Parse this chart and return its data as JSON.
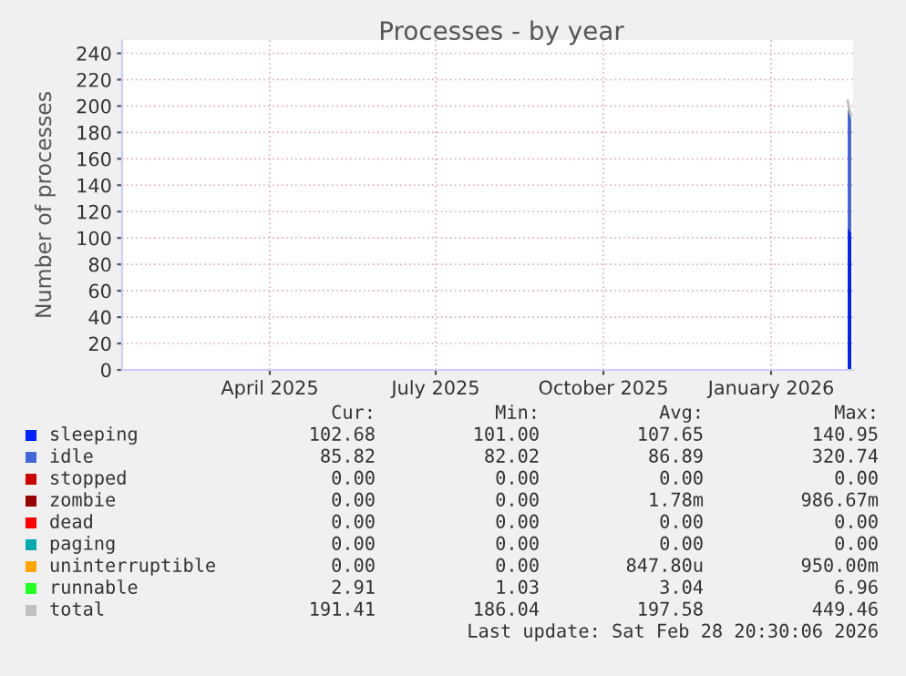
{
  "chart_data": {
    "type": "area",
    "title": "Processes - by year",
    "ylabel": "Number of processes",
    "stacked": true,
    "x": [
      "2026-02-26",
      "2026-02-27",
      "2026-02-28"
    ],
    "series": [
      {
        "name": "sleeping",
        "color": "#0022ff",
        "values": [
          108,
          106,
          104
        ]
      },
      {
        "name": "idle",
        "color": "#4466dd",
        "values": [
          90,
          88,
          86
        ]
      },
      {
        "name": "stopped",
        "color": "#cc0000",
        "values": [
          null,
          null,
          null
        ]
      },
      {
        "name": "zombie",
        "color": "#990000",
        "values": [
          null,
          null,
          null
        ]
      },
      {
        "name": "dead",
        "color": "#ff0000",
        "values": [
          null,
          null,
          null
        ]
      },
      {
        "name": "paging",
        "color": "#00aaaa",
        "values": [
          null,
          null,
          null
        ]
      },
      {
        "name": "uninterruptible",
        "color": "#ffa500",
        "values": [
          null,
          null,
          null
        ]
      },
      {
        "name": "runnable",
        "color": "#22ff22",
        "values": [
          6,
          3,
          3
        ]
      },
      {
        "name": "total",
        "color": "#c0c0c0",
        "type": "line",
        "values": [
          204,
          197,
          193
        ]
      }
    ],
    "xlim": [
      "2025-01-24",
      "2026-03-01"
    ],
    "xticks": [
      {
        "value": "2025-04-15",
        "label": "April 2025"
      },
      {
        "value": "2025-07-15",
        "label": "July 2025"
      },
      {
        "value": "2025-10-15",
        "label": "October 2025"
      },
      {
        "value": "2026-01-15",
        "label": "January 2026"
      }
    ],
    "ylim": [
      0,
      250
    ],
    "yticks": [
      0,
      20,
      40,
      60,
      80,
      100,
      120,
      140,
      160,
      180,
      200,
      220,
      240
    ],
    "grid": true,
    "legend": "bottom",
    "annotations": [
      "Cur:",
      "Min:",
      "Avg:",
      "Max:",
      "102.68",
      "101.00",
      "107.65",
      "140.95",
      "85.82",
      "82.02",
      "86.89",
      "320.74",
      "0.00",
      "0.00",
      "0.00",
      "0.00",
      "0.00",
      "0.00",
      "1.78m",
      "986.67m",
      "0.00",
      "0.00",
      "0.00",
      "0.00",
      "0.00",
      "0.00",
      "0.00",
      "0.00",
      "0.00",
      "0.00",
      "847.80u",
      "950.00m",
      "2.91",
      "1.03",
      "3.04",
      "6.96",
      "191.41",
      "186.04",
      "197.58",
      "449.46",
      "Last update: Sat Feb 28 20:30:06 2026"
    ]
  }
}
